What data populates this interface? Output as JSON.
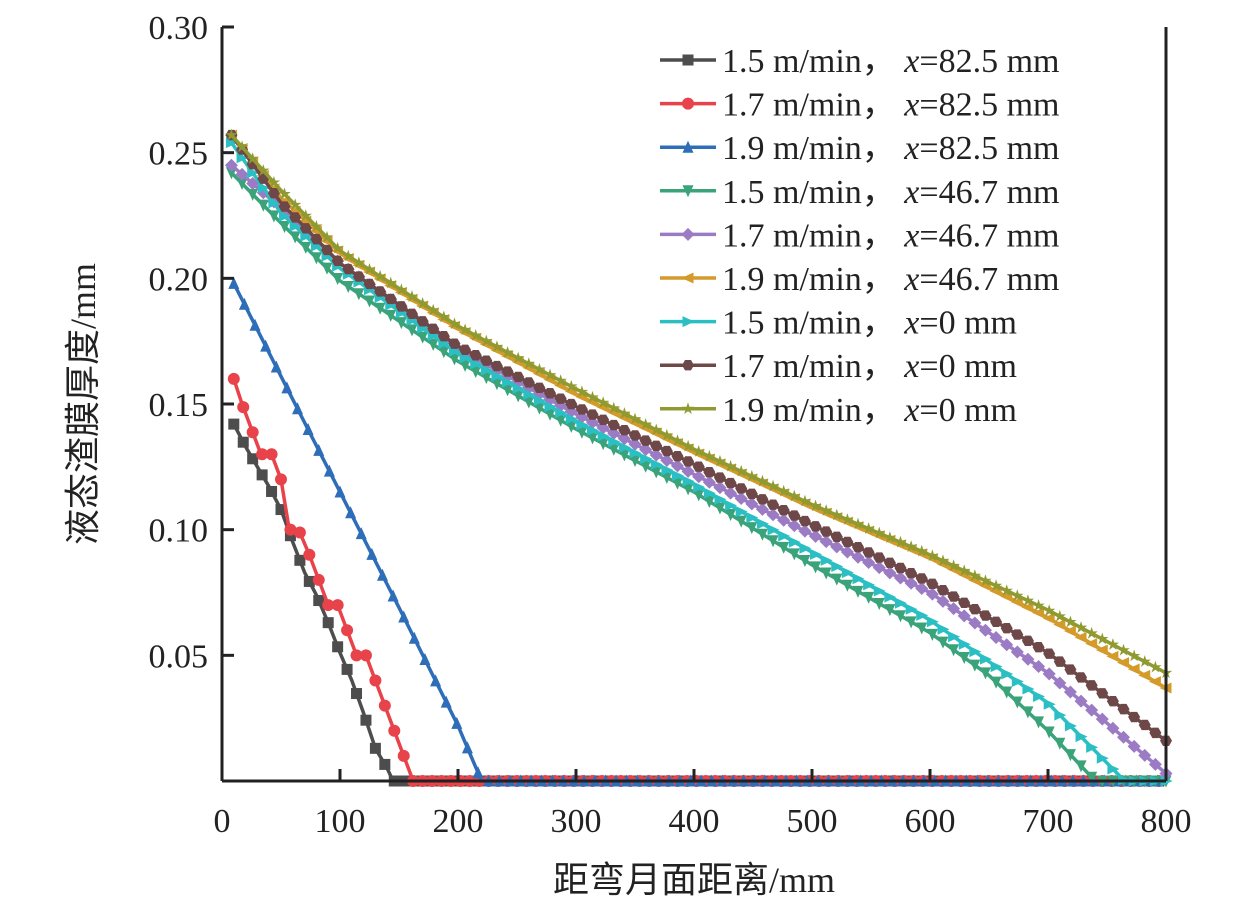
{
  "chart_data": {
    "type": "line",
    "xlabel": "距弯月面距离/mm",
    "ylabel": "液态渣膜厚度/mm",
    "xlim": [
      0,
      800
    ],
    "ylim": [
      0,
      0.3
    ],
    "xticks": [
      "0",
      "100",
      "200",
      "300",
      "400",
      "500",
      "600",
      "700",
      "800"
    ],
    "yticks": [
      "0.05",
      "0.10",
      "0.15",
      "0.20",
      "0.25",
      "0.30"
    ],
    "grid": false,
    "legend": "top-right",
    "series": [
      {
        "name": "1.5 m/min，x=82.5 mm",
        "color": "#4d4d4d",
        "marker": "square",
        "x": [
          10,
          20,
          30,
          40,
          50,
          60,
          70,
          80,
          90,
          100,
          110,
          120,
          130,
          140,
          145,
          800
        ],
        "y": [
          0.142,
          0.133,
          0.125,
          0.117,
          0.108,
          0.095,
          0.083,
          0.074,
          0.063,
          0.051,
          0.04,
          0.027,
          0.013,
          0.005,
          0,
          0
        ]
      },
      {
        "name": "1.7 m/min，x=82.5 mm",
        "color": "#e8424a",
        "marker": "circle",
        "x": [
          10,
          17,
          25,
          33,
          42,
          50,
          57,
          65,
          74,
          82,
          90,
          98,
          106,
          114,
          122,
          130,
          138,
          146,
          154,
          162,
          800
        ],
        "y": [
          0.16,
          0.15,
          0.14,
          0.13,
          0.13,
          0.12,
          0.1,
          0.1,
          0.09,
          0.08,
          0.07,
          0.07,
          0.06,
          0.05,
          0.05,
          0.04,
          0.03,
          0.02,
          0.01,
          0,
          0
        ]
      },
      {
        "name": "1.9 m/min，x=82.5 mm",
        "color": "#2e6db8",
        "marker": "triangle-up",
        "x": [
          10,
          50,
          100,
          150,
          200,
          220,
          800
        ],
        "y": [
          0.198,
          0.161,
          0.115,
          0.069,
          0.022,
          0,
          0
        ]
      },
      {
        "name": "1.5 m/min，x=46.7 mm",
        "color": "#3aa37a",
        "marker": "triangle-down",
        "x": [
          8,
          50,
          100,
          200,
          300,
          400,
          500,
          600,
          650,
          700,
          740,
          800
        ],
        "y": [
          0.242,
          0.222,
          0.199,
          0.167,
          0.14,
          0.115,
          0.086,
          0.059,
          0.042,
          0.02,
          0,
          0
        ]
      },
      {
        "name": "1.7 m/min，x=46.7 mm",
        "color": "#9b7bc4",
        "marker": "diamond",
        "x": [
          8,
          50,
          100,
          200,
          300,
          400,
          500,
          600,
          700,
          800
        ],
        "y": [
          0.245,
          0.228,
          0.206,
          0.172,
          0.146,
          0.122,
          0.098,
          0.075,
          0.043,
          0.003
        ]
      },
      {
        "name": "1.9 m/min，x=46.7 mm",
        "color": "#d49a2a",
        "marker": "triangle-left",
        "x": [
          8,
          50,
          100,
          200,
          300,
          400,
          500,
          600,
          700,
          800
        ],
        "y": [
          0.257,
          0.232,
          0.21,
          0.18,
          0.154,
          0.131,
          0.109,
          0.089,
          0.065,
          0.037
        ]
      },
      {
        "name": "1.5 m/min，x=0 mm",
        "color": "#2bbfc4",
        "marker": "triangle-right",
        "x": [
          8,
          50,
          100,
          200,
          300,
          400,
          500,
          600,
          700,
          765,
          800
        ],
        "y": [
          0.254,
          0.226,
          0.204,
          0.17,
          0.143,
          0.118,
          0.091,
          0.064,
          0.031,
          0,
          0
        ]
      },
      {
        "name": "1.7 m/min，x=0 mm",
        "color": "#6e4848",
        "marker": "hexagon",
        "x": [
          8,
          50,
          100,
          200,
          300,
          400,
          500,
          600,
          700,
          800
        ],
        "y": [
          0.257,
          0.23,
          0.206,
          0.173,
          0.149,
          0.126,
          0.102,
          0.079,
          0.051,
          0.016
        ]
      },
      {
        "name": "1.9 m/min，x=0 mm",
        "color": "#8f9a30",
        "marker": "star",
        "x": [
          8,
          50,
          100,
          200,
          300,
          400,
          500,
          600,
          700,
          800
        ],
        "y": [
          0.257,
          0.235,
          0.211,
          0.181,
          0.156,
          0.132,
          0.11,
          0.09,
          0.068,
          0.043
        ]
      }
    ]
  }
}
